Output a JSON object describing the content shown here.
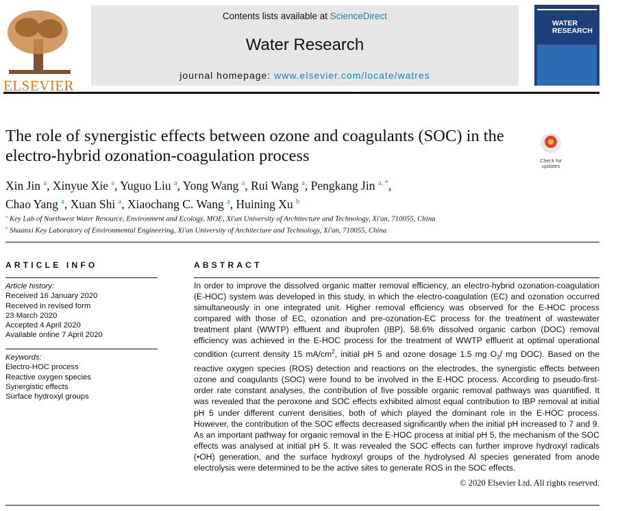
{
  "header": {
    "contents_prefix": "Contents lists available at",
    "contents_link": "ScienceDirect",
    "journal": "Water Research",
    "homepage_prefix": "journal homepage:",
    "homepage_url": "www.elsevier.com/locate/watres",
    "publisher": "ELSEVIER",
    "cover_title": "WATER RESEARCH",
    "check_updates": "Check for updates"
  },
  "title": "The role of synergistic effects between ozone and coagulants (SOC) in the electro-hybrid ozonation-coagulation process",
  "authors": [
    {
      "name": "Xin Jin",
      "aff": "a"
    },
    {
      "name": "Xinyue Xie",
      "aff": "a"
    },
    {
      "name": "Yuguo Liu",
      "aff": "a"
    },
    {
      "name": "Yong Wang",
      "aff": "a"
    },
    {
      "name": "Rui Wang",
      "aff": "a"
    },
    {
      "name": "Pengkang Jin",
      "aff": "a, *"
    },
    {
      "name": "Chao Yang",
      "aff": "a"
    },
    {
      "name": "Xuan Shi",
      "aff": "a"
    },
    {
      "name": "Xiaochang C. Wang",
      "aff": "a"
    },
    {
      "name": "Huining Xu",
      "aff": "b"
    }
  ],
  "affiliations": [
    {
      "mark": "a",
      "text": "Key Lab of Northwest Water Resource, Environment and Ecology, MOE, Xi'an University of Architecture and Technology, Xi'an, 710055, China"
    },
    {
      "mark": "b",
      "text": "Shaanxi Key Laboratory of Environmental Engineering, Xi'an University of Architecture and Technology, Xi'an, 710055, China"
    }
  ],
  "article_info": {
    "heading": "ARTICLE INFO",
    "history_label": "Article history:",
    "history": [
      "Received 16 January 2020",
      "Received in revised form",
      "23 March 2020",
      "Accepted 4 April 2020",
      "Available online 7 April 2020"
    ],
    "keywords_label": "Keywords:",
    "keywords": [
      "Electro-HOC process",
      "Reactive oxygen species",
      "Synergistic effects",
      "Surface hydroxyl groups"
    ]
  },
  "abstract": {
    "heading": "ABSTRACT",
    "text": [
      "In order to improve the dissolved organic matter removal efficiency, an electro-hybrid ozonation-coagulation (E-HOC) system was developed in this study, in which the electro-coagulation (EC) and ozonation occurred simultaneously in one integrated unit. Higher removal efficiency was observed for the E-HOC process compared with those of EC, ozonation and pre-ozonation-EC process for the treatment of wastewater treatment plant (WWTP) effluent and ibuprofen (IBP). 58.6% dissolved organic carbon (DOC) removal efficiency was achieved in the E-HOC process for the treatment of WWTP effluent at optimal operational condition (current density 15 mA/cm",
      "2",
      ", initial pH 5 and ozone dosage 1.5 mg O",
      "3",
      "/ mg DOC). Based on the reactive oxygen species (ROS) detection and reactions on the electrodes, the synergistic effects between ozone and coagulants (SOC) were found to be involved in the E-HOC process. According to pseudo-first-order rate constant analyses, the contribution of five possible organic removal pathways was quantified. It was revealed that the peroxone and SOC effects exhibited almost equal contribution to IBP removal at initial pH 5 under different current densities, both of which played the dominant role in the E-HOC process. However, the contribution of the SOC effects decreased significantly when the initial pH increased to 7 and 9. As an important pathway for organic removal in the E-HOC process at initial pH 5, the mechanism of the SOC effects was analysed at initial pH 5. It was revealed the SOC effects can further improve hydroxyl radicals (•OH) generation, and the surface hydroxyl groups of the hydrolysed Al species generated from anode electrolysis were determined to be the active sites to generate ROS in the SOC effects."
    ],
    "copyright": "© 2020 Elsevier Ltd. All rights reserved."
  }
}
